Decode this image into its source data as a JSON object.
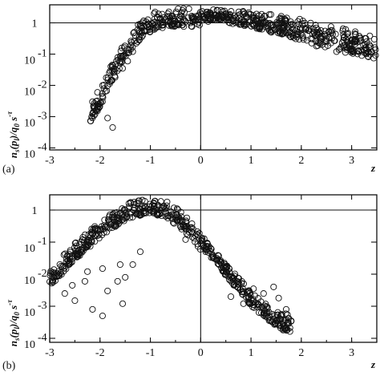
{
  "chart_data": [
    {
      "type": "scatter",
      "panel_label": "(a)",
      "xlabel": "z",
      "ylabel": "n_s(p_l)/q_0 s^-τ",
      "xlim": [
        -3,
        3.5
      ],
      "ylim": [
        0.0001,
        10
      ],
      "y_scale": "log",
      "grid": false,
      "legend": "none",
      "x_ticks": [
        "-3",
        "-2",
        "-1",
        "0",
        "1",
        "2",
        "3"
      ],
      "y_ticks": [
        {
          "base": "1",
          "exp": ""
        },
        {
          "base": "10",
          "exp": "-1"
        },
        {
          "base": "10",
          "exp": "-2"
        },
        {
          "base": "10",
          "exp": "-3"
        },
        {
          "base": "10",
          "exp": "-4"
        }
      ],
      "hline_y": 1,
      "vline_x": 0,
      "envelope": [
        [
          -2.2,
          0.0015
        ],
        [
          -2.0,
          0.008
        ],
        [
          -1.8,
          0.04
        ],
        [
          -1.6,
          0.15
        ],
        [
          -1.4,
          0.45
        ],
        [
          -1.2,
          1.1
        ],
        [
          -1.0,
          2.0
        ],
        [
          -0.8,
          2.6
        ],
        [
          -0.5,
          2.9
        ],
        [
          -0.2,
          2.95
        ],
        [
          0.0,
          2.9
        ],
        [
          0.3,
          2.8
        ],
        [
          0.6,
          2.6
        ],
        [
          1.0,
          2.3
        ],
        [
          1.5,
          1.8
        ],
        [
          2.0,
          1.3
        ],
        [
          2.5,
          0.9
        ],
        [
          3.0,
          0.6
        ],
        [
          3.5,
          0.4
        ]
      ],
      "outliers": [
        [
          -2.15,
          0.003
        ],
        [
          -2.1,
          0.0012
        ],
        [
          -2.05,
          0.006
        ],
        [
          -1.95,
          0.0045
        ],
        [
          -1.85,
          0.0009
        ],
        [
          -1.75,
          0.00045
        ],
        [
          -1.7,
          0.018
        ],
        [
          -1.55,
          0.035
        ],
        [
          -1.45,
          0.06
        ],
        [
          -1.35,
          0.12
        ],
        [
          -1.25,
          0.25
        ],
        [
          -1.15,
          0.4
        ],
        [
          -0.95,
          0.7
        ],
        [
          -0.8,
          1.0
        ],
        [
          -0.6,
          1.2
        ],
        [
          -0.45,
          0.9
        ],
        [
          -0.3,
          1.1
        ],
        [
          -0.15,
          1.3
        ],
        [
          -0.05,
          1.6
        ],
        [
          0.08,
          1.4
        ],
        [
          0.15,
          1.1
        ],
        [
          1.9,
          0.4
        ],
        [
          2.3,
          0.18
        ],
        [
          2.7,
          0.12
        ],
        [
          3.0,
          0.15
        ],
        [
          3.2,
          0.09
        ],
        [
          3.35,
          0.2
        ],
        [
          3.45,
          0.3
        ],
        [
          2.85,
          0.35
        ],
        [
          2.55,
          0.5
        ]
      ],
      "dip_points": [
        [
          -0.55,
          1.35
        ],
        [
          -0.35,
          1.3
        ],
        [
          -0.2,
          1.0
        ],
        [
          -0.1,
          1.2
        ],
        [
          0.05,
          1.25
        ],
        [
          0.2,
          1.3
        ],
        [
          0.35,
          1.35
        ],
        [
          0.55,
          1.3
        ],
        [
          0.7,
          1.45
        ]
      ]
    },
    {
      "type": "scatter",
      "panel_label": "(b)",
      "xlabel": "z",
      "ylabel": "n_s(p_l)/q_0 s^-τ",
      "xlim": [
        -3,
        3.5
      ],
      "ylim": [
        0.0001,
        10
      ],
      "y_scale": "log",
      "grid": false,
      "legend": "none",
      "x_ticks": [
        "-3",
        "-2",
        "-1",
        "0",
        "1",
        "2",
        "3"
      ],
      "y_ticks": [
        {
          "base": "1",
          "exp": ""
        },
        {
          "base": "10",
          "exp": "-1"
        },
        {
          "base": "10",
          "exp": "-2"
        },
        {
          "base": "10",
          "exp": "-3"
        },
        {
          "base": "10",
          "exp": "-4"
        }
      ],
      "hline_y": 1,
      "vline_x": 0,
      "envelope": [
        [
          -3.0,
          0.012
        ],
        [
          -2.7,
          0.045
        ],
        [
          -2.4,
          0.13
        ],
        [
          -2.1,
          0.35
        ],
        [
          -1.8,
          0.85
        ],
        [
          -1.5,
          1.6
        ],
        [
          -1.2,
          2.3
        ],
        [
          -1.0,
          2.6
        ],
        [
          -0.8,
          2.3
        ],
        [
          -0.6,
          1.6
        ],
        [
          -0.4,
          0.95
        ],
        [
          -0.2,
          0.45
        ],
        [
          0.0,
          0.18
        ],
        [
          0.2,
          0.075
        ],
        [
          0.4,
          0.033
        ],
        [
          0.6,
          0.014
        ],
        [
          0.8,
          0.007
        ],
        [
          1.0,
          0.003
        ],
        [
          1.2,
          0.0017
        ],
        [
          1.4,
          0.001
        ],
        [
          1.6,
          0.0007
        ],
        [
          1.8,
          0.0005
        ]
      ],
      "outliers": [
        [
          -2.95,
          0.006
        ],
        [
          -2.9,
          0.009
        ],
        [
          -2.7,
          0.0025
        ],
        [
          -2.55,
          0.0045
        ],
        [
          -2.5,
          0.0015
        ],
        [
          -2.3,
          0.006
        ],
        [
          -2.15,
          0.0008
        ],
        [
          -1.95,
          0.0005
        ],
        [
          -1.85,
          0.003
        ],
        [
          -1.65,
          0.006
        ],
        [
          -1.55,
          0.0012
        ],
        [
          -1.5,
          0.008
        ],
        [
          -1.35,
          0.02
        ],
        [
          -1.2,
          0.05
        ],
        [
          -1.6,
          0.02
        ],
        [
          -1.95,
          0.015
        ],
        [
          -2.25,
          0.012
        ],
        [
          0.6,
          0.002
        ],
        [
          0.85,
          0.0012
        ],
        [
          1.05,
          0.0035
        ],
        [
          1.25,
          0.0025
        ],
        [
          1.45,
          0.004
        ],
        [
          1.55,
          0.0018
        ],
        [
          1.7,
          0.0008
        ],
        [
          1.8,
          0.00035
        ],
        [
          1.68,
          0.00035
        ],
        [
          1.5,
          0.00035
        ],
        [
          1.3,
          0.0006
        ],
        [
          -0.3,
          0.12
        ],
        [
          0.1,
          0.05
        ]
      ]
    }
  ],
  "colors": {
    "ink": "#111111",
    "background": "#ffffff"
  }
}
